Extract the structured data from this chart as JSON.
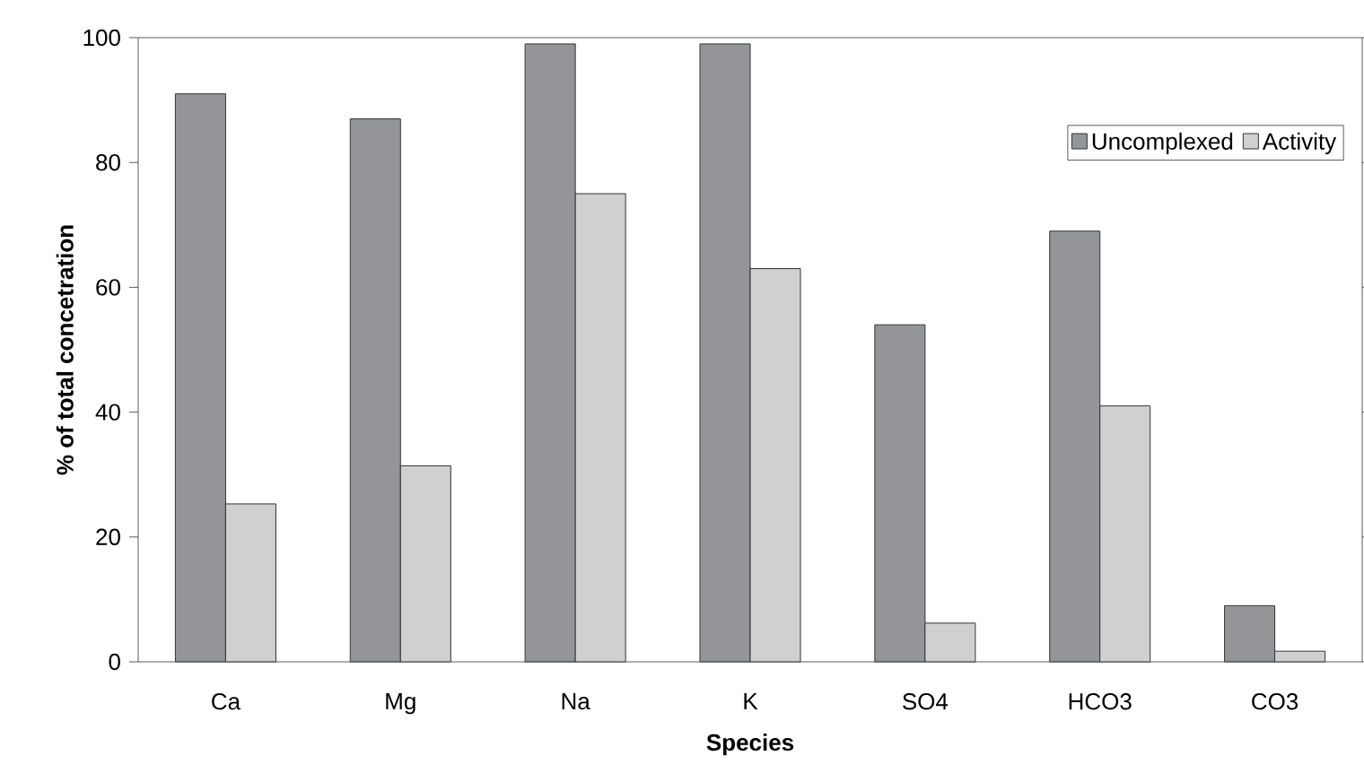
{
  "chart_data": {
    "type": "bar",
    "xlabel": "Species",
    "ylabel": "% of total concetration",
    "categories": [
      "Ca",
      "Mg",
      "Na",
      "K",
      "SO4",
      "HCO3",
      "CO3"
    ],
    "series": [
      {
        "name": "Uncomplexed",
        "color": "#939598",
        "values": [
          91,
          87,
          99,
          99,
          54,
          69,
          9
        ]
      },
      {
        "name": "Activity",
        "color": "#d0d0d0",
        "values": [
          25.3,
          31.4,
          75,
          63,
          6.2,
          41,
          1.7
        ]
      }
    ],
    "ylim": [
      0,
      100
    ],
    "yticks": [
      0,
      20,
      40,
      60,
      80,
      100
    ],
    "legend": "top right"
  }
}
